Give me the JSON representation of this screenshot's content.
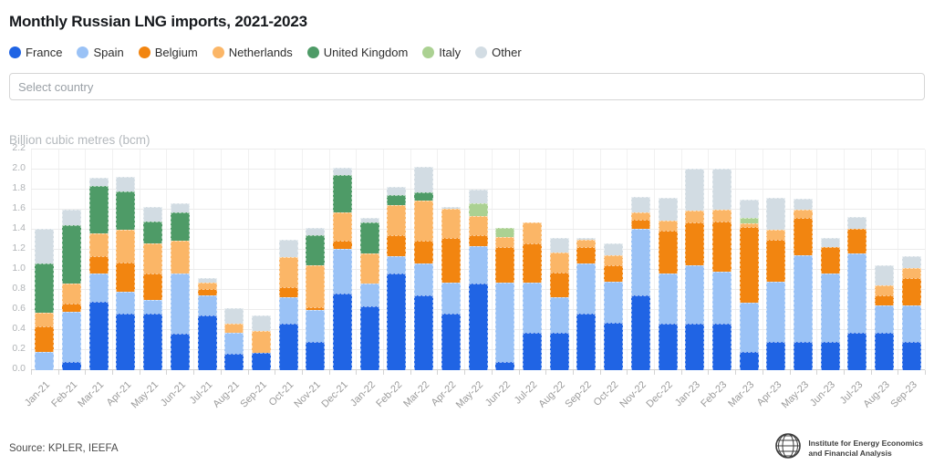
{
  "header": {
    "title": "Monthly Russian LNG imports, 2021-2023"
  },
  "controls": {
    "country_select_placeholder": "Select country"
  },
  "chart_data": {
    "type": "bar",
    "stacked": true,
    "title": "Monthly Russian LNG imports, 2021-2023",
    "ylabel": "Billion cubic metres (bcm)",
    "unit": "bcm",
    "ylim": [
      0,
      2.2
    ],
    "y_tick_step": 0.2,
    "y_tick_labels": [
      "0.0",
      "0.2",
      "0.4",
      "0.6",
      "0.8",
      "1.0",
      "1.2",
      "1.4",
      "1.6",
      "1.8",
      "2.0",
      "2.2"
    ],
    "grid": true,
    "legend_position": "top",
    "categories": [
      "Jan-21",
      "Feb-21",
      "Mar-21",
      "Apr-21",
      "May-21",
      "Jun-21",
      "Jul-21",
      "Aug-21",
      "Sep-21",
      "Oct-21",
      "Nov-21",
      "Dec-21",
      "Jan-22",
      "Feb-22",
      "Mar-22",
      "Apr-22",
      "May-22",
      "Jun-22",
      "Jul-22",
      "Aug-22",
      "Sep-22",
      "Oct-22",
      "Nov-22",
      "Dec-22",
      "Jan-23",
      "Feb-23",
      "Mar-23",
      "Apr-23",
      "May-23",
      "Jun-23",
      "Jul-23",
      "Aug-23",
      "Sep-23"
    ],
    "series": [
      {
        "name": "France",
        "color": "#2064e4",
        "values": [
          0.0,
          0.08,
          0.68,
          0.56,
          0.56,
          0.36,
          0.55,
          0.16,
          0.17,
          0.46,
          0.28,
          0.76,
          0.64,
          0.96,
          0.75,
          0.56,
          0.86,
          0.08,
          0.37,
          0.37,
          0.56,
          0.47,
          0.75,
          0.46,
          0.46,
          0.46,
          0.18,
          0.28,
          0.28,
          0.28,
          0.37,
          0.37,
          0.28
        ]
      },
      {
        "name": "Spain",
        "color": "#9ac2f6",
        "values": [
          0.18,
          0.5,
          0.28,
          0.22,
          0.14,
          0.6,
          0.2,
          0.21,
          0.0,
          0.27,
          0.32,
          0.45,
          0.22,
          0.18,
          0.31,
          0.31,
          0.38,
          0.79,
          0.5,
          0.36,
          0.5,
          0.41,
          0.66,
          0.5,
          0.59,
          0.52,
          0.49,
          0.6,
          0.87,
          0.68,
          0.79,
          0.28,
          0.37
        ]
      },
      {
        "name": "Belgium",
        "color": "#f28510",
        "values": [
          0.26,
          0.08,
          0.18,
          0.29,
          0.26,
          0.0,
          0.06,
          0.0,
          0.0,
          0.1,
          0.03,
          0.08,
          0.0,
          0.21,
          0.23,
          0.45,
          0.11,
          0.36,
          0.39,
          0.24,
          0.17,
          0.17,
          0.09,
          0.43,
          0.42,
          0.5,
          0.76,
          0.42,
          0.37,
          0.27,
          0.25,
          0.1,
          0.27
        ]
      },
      {
        "name": "Netherlands",
        "color": "#fbb667",
        "values": [
          0.13,
          0.2,
          0.22,
          0.33,
          0.3,
          0.33,
          0.06,
          0.09,
          0.22,
          0.3,
          0.42,
          0.28,
          0.3,
          0.3,
          0.4,
          0.29,
          0.19,
          0.1,
          0.21,
          0.2,
          0.07,
          0.1,
          0.07,
          0.1,
          0.12,
          0.12,
          0.03,
          0.1,
          0.08,
          0.0,
          0.0,
          0.1,
          0.1
        ]
      },
      {
        "name": "United Kingdom",
        "color": "#4e9b67",
        "values": [
          0.49,
          0.59,
          0.48,
          0.38,
          0.22,
          0.28,
          0.0,
          0.0,
          0.0,
          0.0,
          0.3,
          0.38,
          0.31,
          0.1,
          0.08,
          0.0,
          0.0,
          0.0,
          0.0,
          0.0,
          0.0,
          0.0,
          0.0,
          0.0,
          0.0,
          0.0,
          0.0,
          0.0,
          0.0,
          0.0,
          0.0,
          0.0,
          0.0
        ]
      },
      {
        "name": "Italy",
        "color": "#abd192",
        "values": [
          0.0,
          0.0,
          0.0,
          0.0,
          0.0,
          0.0,
          0.0,
          0.0,
          0.0,
          0.0,
          0.0,
          0.0,
          0.0,
          0.0,
          0.0,
          0.0,
          0.12,
          0.09,
          0.0,
          0.0,
          0.0,
          0.0,
          0.0,
          0.0,
          0.0,
          0.0,
          0.06,
          0.0,
          0.0,
          0.0,
          0.0,
          0.0,
          0.0
        ]
      },
      {
        "name": "Other",
        "color": "#d2dce3",
        "values": [
          0.35,
          0.15,
          0.08,
          0.15,
          0.15,
          0.09,
          0.05,
          0.16,
          0.16,
          0.17,
          0.07,
          0.07,
          0.05,
          0.08,
          0.26,
          0.02,
          0.14,
          0.0,
          0.0,
          0.15,
          0.02,
          0.11,
          0.16,
          0.23,
          0.42,
          0.41,
          0.18,
          0.32,
          0.11,
          0.09,
          0.12,
          0.2,
          0.12
        ]
      }
    ]
  },
  "footer": {
    "source": "Source: KPLER, IEEFA",
    "logo_line1": "Institute for Energy Economics",
    "logo_line2": "and Financial Analysis"
  }
}
